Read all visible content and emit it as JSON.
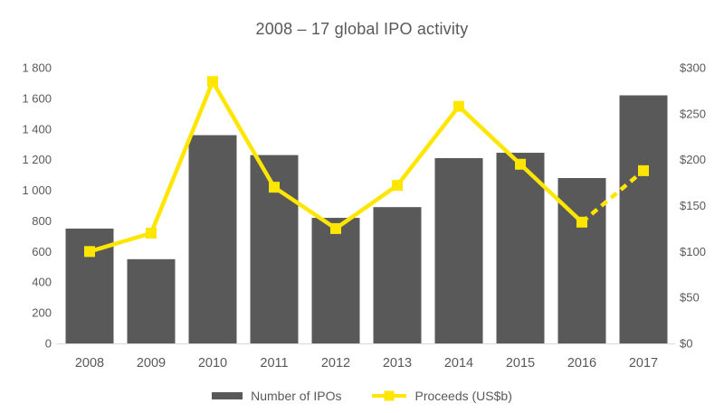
{
  "chart_data": {
    "type": "combo-bar-line",
    "title": "2008 – 17 global IPO activity",
    "categories": [
      "2008",
      "2009",
      "2010",
      "2011",
      "2012",
      "2013",
      "2014",
      "2015",
      "2016",
      "2017"
    ],
    "series": [
      {
        "name": "Number of IPOs",
        "kind": "bar",
        "axis": "left",
        "color": "#595959",
        "values": [
          750,
          550,
          1360,
          1230,
          820,
          890,
          1210,
          1245,
          1080,
          1620
        ]
      },
      {
        "name": "Proceeds (US$b)",
        "kind": "line",
        "axis": "right",
        "color": "#ffe600",
        "marker": "square",
        "values": [
          100,
          120,
          285,
          170,
          125,
          172,
          258,
          195,
          132,
          188
        ],
        "dashed_from_index": 8
      }
    ],
    "left_axis": {
      "min": 0,
      "max": 1800,
      "step": 200,
      "tick_labels": [
        "0",
        "200",
        "400",
        "600",
        "800",
        "1 000",
        "1 200",
        "1 400",
        "1 600",
        "1 800"
      ]
    },
    "right_axis": {
      "min": 0,
      "max": 300,
      "step": 50,
      "tick_labels": [
        "$0",
        "$50",
        "$100",
        "$150",
        "$200",
        "$250",
        "$300"
      ]
    },
    "gridlines": false,
    "legend_position": "bottom",
    "text_color": "#595959",
    "axis_line_color": "#d9d9d9"
  }
}
